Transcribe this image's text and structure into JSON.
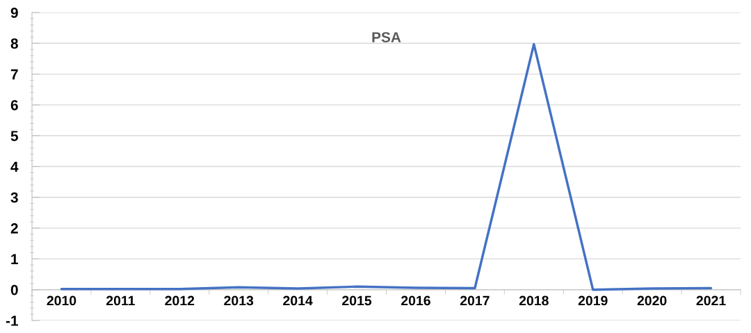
{
  "chart_data": {
    "type": "line",
    "title": "PSA",
    "categories": [
      "2010",
      "2011",
      "2012",
      "2013",
      "2014",
      "2015",
      "2016",
      "2017",
      "2018",
      "2019",
      "2020",
      "2021"
    ],
    "series": [
      {
        "color": "#4472c4",
        "values": [
          0.02,
          0.02,
          0.02,
          0.08,
          0.04,
          0.1,
          0.06,
          0.05,
          7.97,
          0.0,
          0.04,
          0.05
        ]
      }
    ],
    "ylim": [
      -1,
      9
    ],
    "yticks": [
      -1,
      0,
      1,
      2,
      3,
      4,
      5,
      6,
      7,
      8,
      9
    ],
    "grid": "y",
    "marker": "none",
    "line_style": "solid"
  }
}
